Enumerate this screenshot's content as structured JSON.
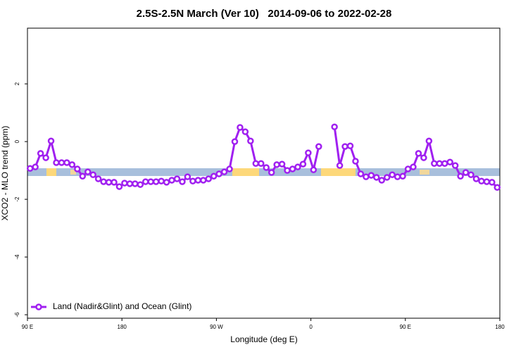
{
  "chart_data": {
    "type": "line",
    "title": "2.5S-2.5N March (Ver 10)   2014-09-06 to 2022-02-28",
    "xlabel": "Longitude (deg E)",
    "ylabel": "XCO2 - MLO trend (ppm)",
    "x": [
      92.5,
      97.5,
      102.5,
      107.5,
      112.5,
      117.5,
      122.5,
      127.5,
      132.5,
      137.5,
      142.5,
      147.5,
      152.5,
      157.5,
      162.5,
      167.5,
      172.5,
      177.5,
      182.5,
      187.5,
      192.5,
      197.5,
      202.5,
      207.5,
      212.5,
      217.5,
      222.5,
      227.5,
      232.5,
      237.5,
      242.5,
      247.5,
      252.5,
      257.5,
      262.5,
      267.5,
      272.5,
      277.5,
      282.5,
      287.5,
      292.5,
      297.5,
      302.5,
      307.5,
      312.5,
      317.5,
      322.5,
      327.5,
      332.5,
      337.5,
      342.5,
      347.5,
      352.5,
      357.5,
      362.5,
      367.5,
      372.5,
      377.5,
      382.5,
      387.5,
      392.5,
      397.5,
      402.5,
      407.5,
      412.5,
      417.5,
      422.5,
      427.5,
      432.5,
      437.5,
      442.5,
      447.5,
      452.5,
      457.5,
      462.5,
      467.5,
      472.5,
      477.5,
      482.5,
      487.5,
      492.5,
      497.5,
      502.5,
      507.5,
      512.5,
      517.5,
      522.5,
      527.5,
      532.5,
      537.5
    ],
    "series": [
      {
        "name": "Land (Nadir&Glint) and Ocean (Glint)",
        "color": "#a020f0",
        "values": [
          -0.93,
          -0.88,
          -0.41,
          -0.56,
          0.02,
          -0.73,
          -0.73,
          -0.73,
          -0.8,
          -0.95,
          -1.2,
          -1.05,
          -1.15,
          -1.29,
          -1.39,
          -1.41,
          -1.41,
          -1.56,
          -1.44,
          -1.46,
          -1.46,
          -1.49,
          -1.39,
          -1.39,
          -1.39,
          -1.37,
          -1.41,
          -1.34,
          -1.29,
          -1.39,
          -1.22,
          -1.37,
          -1.34,
          -1.34,
          -1.29,
          -1.2,
          -1.12,
          -1.05,
          -0.95,
          0.0,
          0.49,
          0.34,
          0.02,
          -0.76,
          -0.76,
          -0.9,
          -1.07,
          -0.8,
          -0.78,
          -1.0,
          -0.95,
          -0.88,
          -0.78,
          -0.39,
          -0.98,
          -0.17,
          null,
          null,
          0.51,
          -0.83,
          -0.17,
          -0.15,
          -0.68,
          -1.12,
          -1.22,
          -1.17,
          -1.24,
          -1.34,
          -1.24,
          -1.15,
          -1.22,
          -1.2,
          -0.95,
          -0.88,
          -0.41,
          -0.56,
          0.02,
          -0.76,
          -0.76,
          -0.76,
          -0.71,
          -0.83,
          -1.2,
          -1.07,
          -1.15,
          -1.29,
          -1.37,
          -1.39,
          -1.41,
          -1.59
        ]
      }
    ],
    "xlim": [
      90,
      540
    ],
    "xticks": [
      {
        "value": 90,
        "label": "90 E"
      },
      180,
      {
        "value": 270,
        "label": "90 W"
      },
      {
        "value": 360,
        "label": "0"
      },
      {
        "value": 450,
        "label": "90 E"
      },
      {
        "value": 540,
        "label": "180"
      }
    ],
    "ylim": [
      -6.12,
      3.93
    ],
    "yticks": [
      -6,
      -4,
      -2,
      0,
      2
    ],
    "legend": "bottom-left"
  }
}
